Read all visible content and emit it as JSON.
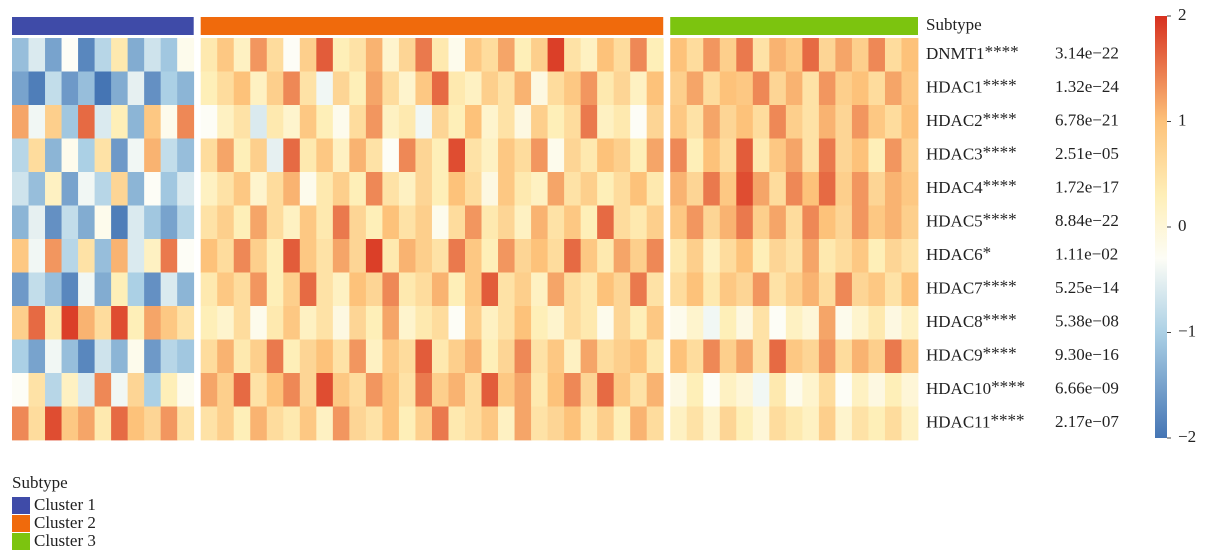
{
  "chart_data": {
    "type": "heatmap",
    "annotation_label": "Subtype",
    "legend_title": "Subtype",
    "rows": [
      "DNMT1",
      "HDAC1",
      "HDAC2",
      "HDAC3",
      "HDAC4",
      "HDAC5",
      "HDAC6",
      "HDAC7",
      "HDAC8",
      "HDAC9",
      "HDAC10",
      "HDAC11"
    ],
    "stars": [
      "****",
      "****",
      "****",
      "****",
      "****",
      "****",
      "*",
      "****",
      "****",
      "****",
      "****",
      "****"
    ],
    "pvalues": [
      "3.14e−22",
      "1.32e−24",
      "6.78e−21",
      "2.51e−05",
      "1.72e−17",
      "8.84e−22",
      "1.11e−02",
      "5.25e−14",
      "5.38e−08",
      "9.30e−16",
      "6.66e−09",
      "2.17e−07"
    ],
    "clim": [
      -2,
      2
    ],
    "cticks": [
      2,
      1,
      0,
      {
        "value": -1,
        "label": "−1"
      },
      {
        "value": -2,
        "label": "−2"
      }
    ],
    "colorscale": [
      [
        -2,
        "#4575b4"
      ],
      [
        -1,
        "#abd0e5"
      ],
      [
        -0.3,
        "#fdfdf6"
      ],
      [
        0.3,
        "#feefb8"
      ],
      [
        1,
        "#fdc27a"
      ],
      [
        2,
        "#d7301f"
      ]
    ],
    "groups": [
      {
        "name": "Cluster 1",
        "color": "#3f4ba8",
        "matrix": [
          [
            -1.2,
            -0.6,
            -1.5,
            -0.3,
            -1.8,
            -0.9,
            0.4,
            -1.4,
            -0.7,
            -1.1,
            -0.2
          ],
          [
            -1.5,
            -1.9,
            -0.8,
            -1.6,
            -1.2,
            -2,
            -1.4,
            -0.5,
            -1.7,
            -1.0,
            -1.3
          ],
          [
            1.2,
            -0.4,
            0.8,
            -1.1,
            1.6,
            -0.6,
            0.3,
            -1.3,
            0.9,
            -0.2,
            1.4
          ],
          [
            -0.9,
            0.6,
            -1.3,
            -0.2,
            -1.0,
            0.5,
            -1.6,
            -0.4,
            1.1,
            -0.8,
            -1.2
          ],
          [
            -0.7,
            -1.2,
            0.2,
            -1.5,
            -0.4,
            -0.9,
            0.7,
            -1.3,
            -0.3,
            -1.1,
            -0.6
          ],
          [
            -1.3,
            -0.5,
            -1.7,
            -0.8,
            -1.4,
            -0.2,
            -1.9,
            -0.6,
            -1.1,
            -1.5,
            -0.9
          ],
          [
            0.9,
            -0.4,
            1.3,
            -0.9,
            0.5,
            -1.2,
            1.1,
            -0.6,
            0.2,
            1.5,
            -0.3
          ],
          [
            -1.6,
            -0.8,
            -1.2,
            -1.8,
            -0.4,
            -1.4,
            0.3,
            -1.0,
            -1.7,
            -0.6,
            -1.3
          ],
          [
            0.8,
            1.6,
            0.4,
            1.9,
            1.1,
            0.6,
            1.8,
            0.3,
            1.2,
            0.9,
            0.5
          ],
          [
            -1.0,
            -1.5,
            -0.4,
            -1.2,
            -1.8,
            -0.7,
            -1.3,
            -0.2,
            -1.6,
            -0.9,
            -1.1
          ],
          [
            -0.3,
            0.5,
            -0.9,
            0.2,
            -0.6,
            1.4,
            -0.4,
            0.7,
            -1.0,
            0.3,
            -0.2
          ],
          [
            1.4,
            0.6,
            1.8,
            0.9,
            1.2,
            0.4,
            1.6,
            1.0,
            0.7,
            1.3,
            0.5
          ]
        ]
      },
      {
        "name": "Cluster 2",
        "color": "#f06a0c",
        "matrix": [
          [
            0.4,
            0.9,
            0.2,
            1.3,
            0.6,
            -0.3,
            0.8,
            1.7,
            0.3,
            0.5,
            1.1,
            0.1,
            0.7,
            1.5,
            0.4,
            -0.2,
            0.9,
            0.6,
            1.2,
            0.3,
            0.8,
            1.9,
            0.5,
            0.2,
            1.0,
            0.6,
            1.4,
            0.3
          ],
          [
            0.3,
            0.6,
            1.0,
            0.2,
            0.8,
            1.4,
            0.5,
            -0.4,
            0.7,
            0.3,
            1.2,
            0.6,
            0.1,
            0.9,
            1.6,
            0.4,
            0.2,
            0.8,
            0.5,
            1.1,
            -0.1,
            0.6,
            0.9,
            1.3,
            0.4,
            0.7,
            0.2,
            1.0
          ],
          [
            -0.3,
            0.2,
            0.5,
            -0.6,
            0.4,
            0.1,
            0.9,
            0.3,
            -0.2,
            0.6,
            1.3,
            0.2,
            0.4,
            -0.4,
            0.7,
            0.3,
            1.0,
            0.1,
            0.5,
            -0.1,
            0.8,
            0.3,
            0.6,
            1.5,
            0.2,
            0.4,
            -0.3,
            0.7
          ],
          [
            0.6,
            1.2,
            0.3,
            0.8,
            -0.5,
            1.6,
            0.4,
            0.9,
            0.2,
            1.1,
            0.5,
            -0.3,
            1.4,
            0.7,
            0.3,
            1.8,
            0.5,
            0.2,
            0.9,
            0.6,
            1.3,
            -0.2,
            0.7,
            0.4,
            1.0,
            0.8,
            0.3,
            1.2
          ],
          [
            0.2,
            0.5,
            0.9,
            0.1,
            0.6,
            1.1,
            -0.2,
            0.4,
            0.8,
            0.3,
            1.4,
            0.5,
            0.2,
            0.7,
            0.3,
            1.0,
            0.6,
            -0.1,
            0.9,
            0.4,
            0.2,
            1.2,
            0.5,
            0.8,
            0.3,
            0.6,
            1.0,
            0.4
          ],
          [
            0.5,
            0.8,
            0.3,
            1.2,
            0.6,
            0.2,
            0.9,
            0.4,
            1.5,
            0.7,
            0.3,
            1.0,
            0.5,
            0.8,
            -0.2,
            0.6,
            1.3,
            0.4,
            0.7,
            0.2,
            1.1,
            0.5,
            0.9,
            0.3,
            1.6,
            0.6,
            0.4,
            0.8
          ],
          [
            1.0,
            0.6,
            1.4,
            0.8,
            0.3,
            1.7,
            0.9,
            0.5,
            1.2,
            0.7,
            1.9,
            0.4,
            1.1,
            0.8,
            0.5,
            1.5,
            0.9,
            0.3,
            1.3,
            0.7,
            1.0,
            0.6,
            1.6,
            0.9,
            0.4,
            1.2,
            0.8,
            1.4
          ],
          [
            0.4,
            0.9,
            0.6,
            1.3,
            0.3,
            0.8,
            1.6,
            0.5,
            0.2,
            1.0,
            0.7,
            1.4,
            0.4,
            0.6,
            1.1,
            0.3,
            0.9,
            1.7,
            0.5,
            0.8,
            0.2,
            1.2,
            0.6,
            0.4,
            1.0,
            0.7,
            1.5,
            0.5
          ],
          [
            0.3,
            0.1,
            0.6,
            -0.2,
            0.4,
            0.9,
            0.2,
            0.5,
            -0.1,
            0.7,
            0.3,
            1.2,
            0.1,
            0.4,
            0.6,
            -0.3,
            0.8,
            0.2,
            0.5,
            1.0,
            0.3,
            0.1,
            0.6,
            0.4,
            -0.2,
            0.7,
            0.3,
            0.9
          ],
          [
            0.6,
            1.1,
            0.4,
            0.8,
            1.5,
            0.3,
            0.7,
            1.0,
            0.5,
            1.3,
            0.2,
            0.9,
            0.6,
            1.7,
            0.4,
            0.8,
            1.1,
            0.3,
            0.7,
            1.4,
            0.5,
            0.9,
            0.2,
            1.2,
            0.6,
            0.8,
            1.0,
            0.4
          ],
          [
            1.2,
            0.8,
            1.6,
            0.5,
            1.0,
            1.4,
            0.7,
            1.8,
            0.9,
            0.6,
            1.3,
            1.0,
            0.5,
            1.5,
            0.8,
            1.1,
            0.6,
            1.7,
            0.9,
            1.2,
            0.4,
            1.0,
            1.4,
            0.7,
            1.6,
            0.9,
            0.5,
            1.1
          ],
          [
            0.5,
            0.8,
            0.3,
            1.1,
            0.6,
            0.4,
            0.9,
            0.2,
            1.3,
            0.7,
            0.5,
            1.0,
            0.3,
            0.8,
            1.5,
            0.4,
            0.6,
            0.9,
            0.2,
            1.2,
            0.5,
            0.7,
            1.0,
            0.4,
            0.8,
            0.3,
            1.1,
            0.6
          ]
        ]
      },
      {
        "name": "Cluster 3",
        "color": "#7cc40f",
        "matrix": [
          [
            1.0,
            0.6,
            1.3,
            0.8,
            1.5,
            0.5,
            1.1,
            0.9,
            1.6,
            0.7,
            1.2,
            0.8,
            1.4,
            0.6,
            1.0
          ],
          [
            0.8,
            1.2,
            0.6,
            1.0,
            0.9,
            1.4,
            0.7,
            1.1,
            0.5,
            1.3,
            0.8,
            1.0,
            0.6,
            1.2,
            0.9
          ],
          [
            0.9,
            0.5,
            1.2,
            0.7,
            1.0,
            0.6,
            1.4,
            0.8,
            0.5,
            1.1,
            0.7,
            1.3,
            0.9,
            0.6,
            1.0
          ],
          [
            1.4,
            0.3,
            1.0,
            0.6,
            1.7,
            0.4,
            0.9,
            1.2,
            0.5,
            1.5,
            0.7,
            1.0,
            0.3,
            1.3,
            0.8
          ],
          [
            1.1,
            0.7,
            1.5,
            0.9,
            1.8,
            1.2,
            0.6,
            1.4,
            1.0,
            1.6,
            0.8,
            1.3,
            0.7,
            1.1,
            0.9
          ],
          [
            0.9,
            1.3,
            0.7,
            1.1,
            1.5,
            0.8,
            1.2,
            0.6,
            1.4,
            1.0,
            0.7,
            1.3,
            0.9,
            1.1,
            0.8
          ],
          [
            0.4,
            0.8,
            0.2,
            0.6,
            1.0,
            0.3,
            0.7,
            0.5,
            1.2,
            0.4,
            0.6,
            0.9,
            0.3,
            0.7,
            0.5
          ],
          [
            0.6,
            1.0,
            0.4,
            0.9,
            0.7,
            1.3,
            0.5,
            0.8,
            1.1,
            0.6,
            1.4,
            0.7,
            0.9,
            0.5,
            1.0
          ],
          [
            -0.2,
            0.1,
            -0.4,
            0.3,
            -0.1,
            0.5,
            -0.3,
            0.2,
            0.0,
            1.2,
            -0.2,
            0.1,
            0.4,
            -0.1,
            0.2
          ],
          [
            1.0,
            0.6,
            1.4,
            0.8,
            1.2,
            0.5,
            1.6,
            0.9,
            0.7,
            1.3,
            0.6,
            1.1,
            0.8,
            1.5,
            0.9
          ],
          [
            -0.1,
            0.3,
            -0.3,
            0.2,
            0.0,
            -0.4,
            0.4,
            -0.2,
            0.1,
            0.6,
            -0.3,
            0.2,
            -0.1,
            0.3,
            0.0
          ],
          [
            0.2,
            0.5,
            0.1,
            0.7,
            0.3,
            0.0,
            0.6,
            0.4,
            0.2,
            0.8,
            0.1,
            0.5,
            0.3,
            0.6,
            0.2
          ]
        ]
      }
    ]
  }
}
